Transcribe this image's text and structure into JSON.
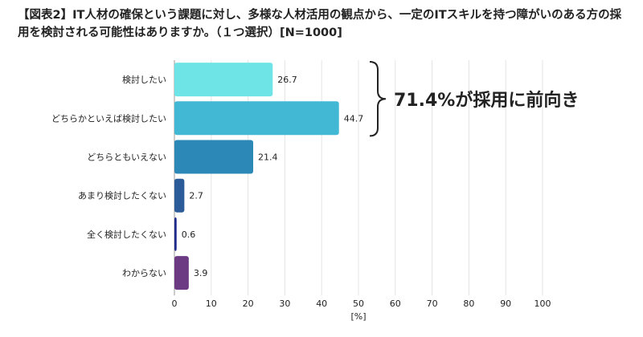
{
  "chart_data": {
    "type": "bar",
    "orientation": "horizontal",
    "title": "【図表2】IT人材の確保という課題に対し、多様な人材活用の観点から、一定のITスキルを持つ障がいのある方の採用を検討される可能性はありますか。（１つ選択）[N=1000]",
    "categories": [
      "検討したい",
      "どちらかといえば検討したい",
      "どちらともいえない",
      "あまり検討したくない",
      "全く検討したくない",
      "わからない"
    ],
    "values": [
      26.7,
      44.7,
      21.4,
      2.7,
      0.6,
      3.9
    ],
    "value_labels": [
      "26.7",
      "44.7",
      "21.4",
      "2.7",
      "0.6",
      "3.9"
    ],
    "colors": [
      "#6ee4e7",
      "#43b8d5",
      "#2c89b7",
      "#2b5b98",
      "#1f2b8c",
      "#6b3a82"
    ],
    "xlabel": "[%]",
    "xlim": [
      0,
      100
    ],
    "xticks": [
      "0",
      "10",
      "20",
      "30",
      "40",
      "50",
      "60",
      "70",
      "80",
      "90",
      "100"
    ],
    "grid": "vertical",
    "annotation": {
      "text": "71.4%が採用に前向き",
      "brace_spans": [
        "検討したい",
        "どちらかといえば検討したい"
      ]
    }
  }
}
